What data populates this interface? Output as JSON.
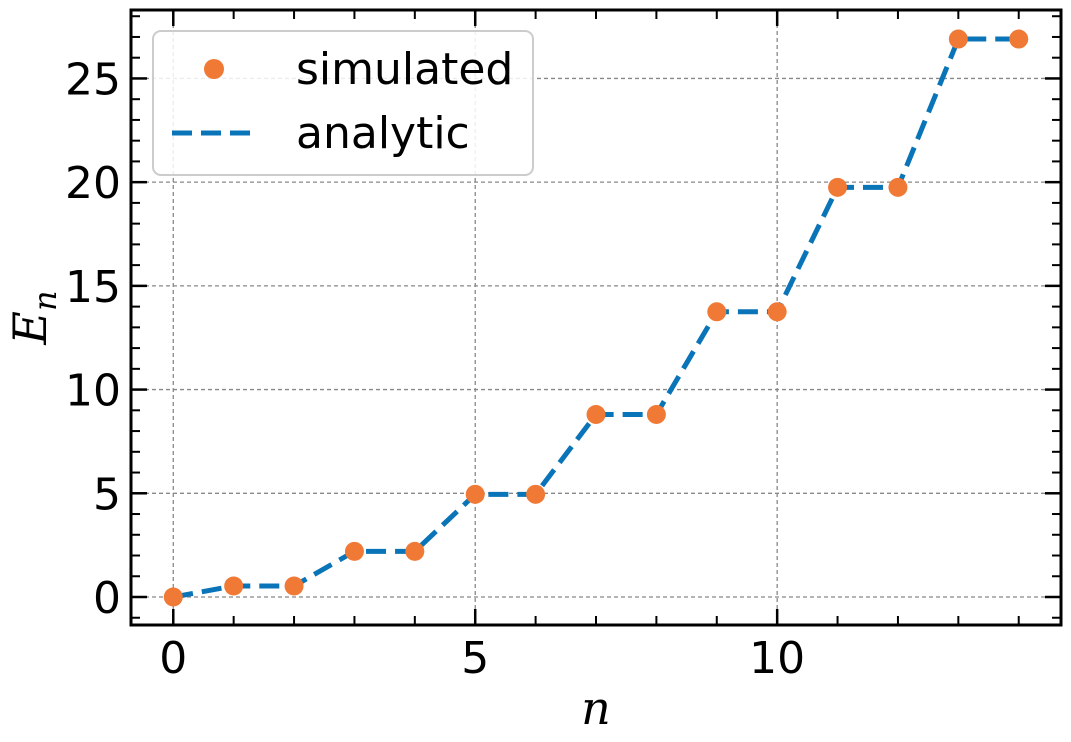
{
  "chart_data": {
    "type": "line",
    "xlabel": "n",
    "ylabel": "E_n",
    "ylabel_main": "E",
    "ylabel_sub": "n",
    "xlim": [
      -0.7,
      14.7
    ],
    "ylim": [
      -1.35,
      28.3
    ],
    "xticks": [
      0,
      5,
      10
    ],
    "xtick_labels": [
      "0",
      "5",
      "10"
    ],
    "yticks": [
      0,
      5,
      10,
      15,
      20,
      25
    ],
    "ytick_labels": [
      "0",
      "5",
      "10",
      "15",
      "20",
      "25"
    ],
    "grid": true,
    "legend_position": "upper-left",
    "series": [
      {
        "name": "simulated",
        "style": "markers",
        "color": "#f07a35",
        "x": [
          0,
          1,
          2,
          3,
          4,
          5,
          6,
          7,
          8,
          9,
          10,
          11,
          12,
          13,
          14
        ],
        "y": [
          0,
          0.53,
          0.53,
          2.2,
          2.2,
          4.95,
          4.95,
          8.8,
          8.8,
          13.75,
          13.75,
          19.75,
          19.75,
          26.9,
          26.9
        ]
      },
      {
        "name": "analytic",
        "style": "dashed-line",
        "color": "#0a74b8",
        "x": [
          0,
          1,
          2,
          3,
          4,
          5,
          6,
          7,
          8,
          9,
          10,
          11,
          12,
          13,
          14
        ],
        "y": [
          0,
          0.53,
          0.53,
          2.2,
          2.2,
          4.95,
          4.95,
          8.8,
          8.8,
          13.75,
          13.75,
          19.75,
          19.75,
          26.9,
          26.9
        ]
      }
    ]
  }
}
